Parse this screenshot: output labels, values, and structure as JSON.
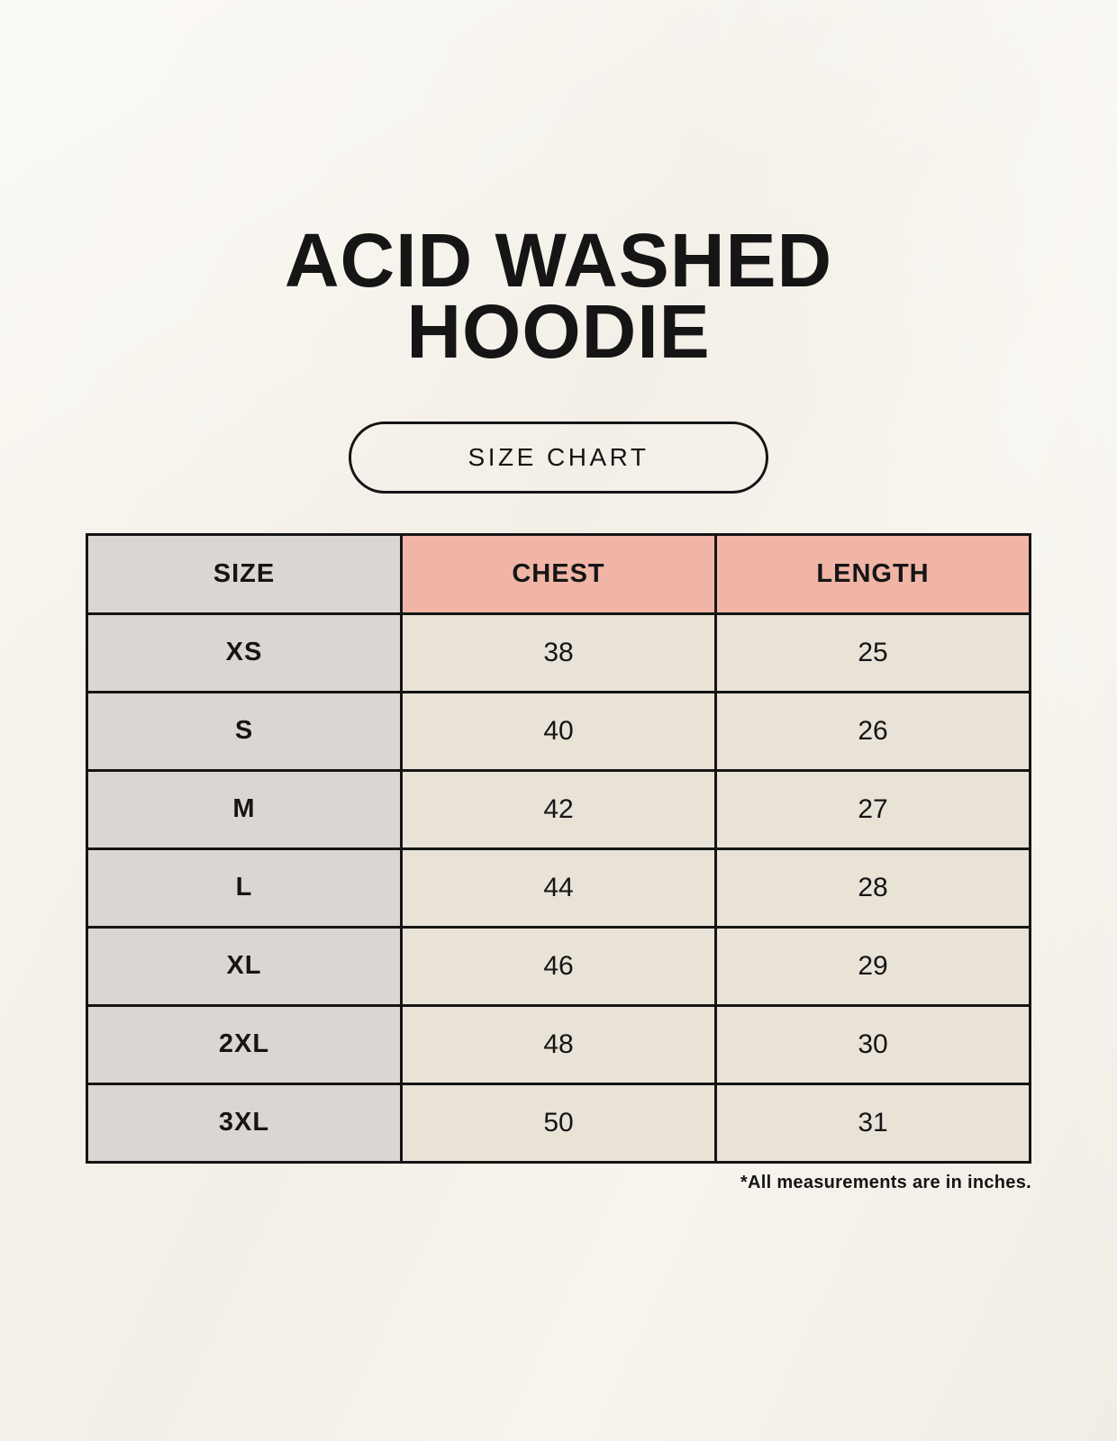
{
  "page": {
    "title_line1": "ACID WASHED",
    "title_line2": "HOODIE",
    "button_label": "SIZE CHART",
    "footnote": "*All measurements are in inches."
  },
  "colors": {
    "background": "#f5f1ea",
    "table_border": "#151515",
    "header_pink": "#f0b5a6",
    "cell_gray": "#dcd6d2",
    "cell_cream": "#e9e2d7",
    "text": "#151515"
  },
  "chart_data": {
    "type": "table",
    "title": "ACID WASHED HOODIE — SIZE CHART",
    "columns": [
      "SIZE",
      "CHEST",
      "LENGTH"
    ],
    "rows": [
      {
        "size": "XS",
        "chest": 38,
        "length": 25
      },
      {
        "size": "S",
        "chest": 40,
        "length": 26
      },
      {
        "size": "M",
        "chest": 42,
        "length": 27
      },
      {
        "size": "L",
        "chest": 44,
        "length": 28
      },
      {
        "size": "XL",
        "chest": 46,
        "length": 29
      },
      {
        "size": "2XL",
        "chest": 48,
        "length": 30
      },
      {
        "size": "3XL",
        "chest": 50,
        "length": 31
      }
    ],
    "units": "inches",
    "layout_hints": {
      "header_colors": [
        "gray",
        "pink",
        "pink"
      ],
      "grid": true
    }
  }
}
